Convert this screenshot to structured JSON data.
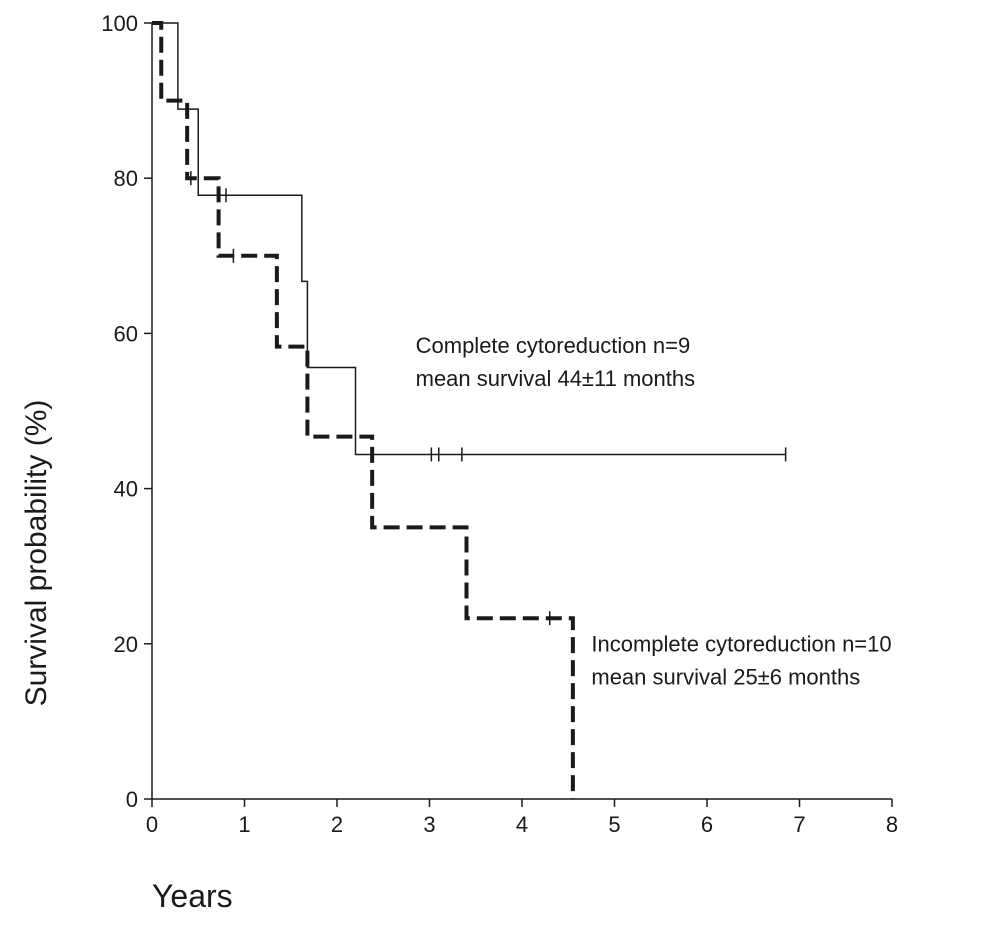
{
  "chart_data": {
    "type": "line",
    "subtype": "kaplan-meier-step",
    "title": "",
    "xlabel": "Years",
    "ylabel": "Survival probability (%)",
    "xlim": [
      0,
      8
    ],
    "ylim": [
      0,
      100
    ],
    "x_ticks": [
      0,
      1,
      2,
      3,
      4,
      5,
      6,
      7,
      8
    ],
    "y_ticks": [
      0,
      20,
      40,
      60,
      80,
      100
    ],
    "grid": false,
    "legend": "none",
    "series": [
      {
        "style": "solid",
        "color": "#1a1a1a",
        "steps": [
          {
            "x": 0.0,
            "y": 100
          },
          {
            "x": 0.28,
            "y": 88.9
          },
          {
            "x": 0.5,
            "y": 77.8
          },
          {
            "x": 1.62,
            "y": 66.7
          },
          {
            "x": 1.68,
            "y": 55.6
          },
          {
            "x": 2.2,
            "y": 44.4
          }
        ],
        "end_x": 6.85,
        "censored": [
          0.8,
          3.02,
          3.1,
          3.35,
          6.85
        ]
      },
      {
        "style": "dashed",
        "color": "#1a1a1a",
        "steps": [
          {
            "x": 0.0,
            "y": 100
          },
          {
            "x": 0.1,
            "y": 90
          },
          {
            "x": 0.38,
            "y": 80
          },
          {
            "x": 0.72,
            "y": 70
          },
          {
            "x": 1.35,
            "y": 58.3
          },
          {
            "x": 1.68,
            "y": 46.7
          },
          {
            "x": 2.38,
            "y": 35
          },
          {
            "x": 3.4,
            "y": 23.3
          },
          {
            "x": 4.55,
            "y": 0
          }
        ],
        "end_x": 4.55,
        "censored": [
          0.42,
          0.88,
          4.3
        ]
      }
    ],
    "annotations": [
      {
        "lines": [
          "Complete cytoreduction n=9",
          "mean survival 44±11 months"
        ],
        "x": 2.85,
        "y": 57.5,
        "anchor": "start"
      },
      {
        "lines": [
          "Incomplete cytoreduction n=10",
          "mean survival 25±6 months"
        ],
        "x": 4.75,
        "y": 19,
        "anchor": "start"
      }
    ]
  }
}
